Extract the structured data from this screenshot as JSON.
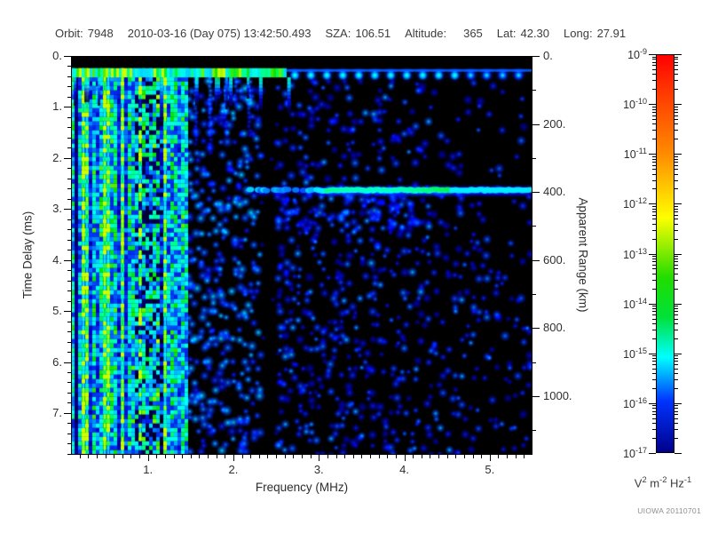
{
  "header": {
    "fields": [
      {
        "key": "orbit",
        "label": "Orbit:",
        "value": "7948"
      },
      {
        "key": "datetime",
        "label": "",
        "value": "2010-03-16 (Day 075) 13:42:50.493"
      },
      {
        "key": "sza",
        "label": "SZA:",
        "value": "106.51"
      },
      {
        "key": "altitude",
        "label": "Altitude:",
        "value": "365"
      },
      {
        "key": "lat",
        "label": "Lat:",
        "value": "42.30"
      },
      {
        "key": "long",
        "label": "Long:",
        "value": "27.91"
      }
    ]
  },
  "watermark": "UIOWA 20110701",
  "chart_data": {
    "type": "heatmap",
    "title": "Radar sounder ionogram (AIS radargram), Orbit 7948, 2010-03-16 13:42:50.493",
    "xlabel": "Frequency (MHz)",
    "ylabel_left": "Time Delay (ms)",
    "ylabel_right": "Apparent Range (km)",
    "x_range_mhz": [
      0.1,
      5.5
    ],
    "y_range_ms": [
      0.0,
      7.82
    ],
    "right_range_km": [
      0,
      1173
    ],
    "x_major_values": [
      1,
      2,
      3,
      4,
      5
    ],
    "x_major_labels": [
      "1.",
      "2.",
      "3.",
      "4.",
      "5."
    ],
    "x_minor_step_mhz": 0.1,
    "y_major_values": [
      0,
      1,
      2,
      3,
      4,
      5,
      6,
      7
    ],
    "y_major_labels": [
      "0.",
      "1.",
      "2.",
      "3.",
      "4.",
      "5.",
      "6.",
      "7."
    ],
    "y_minor_step_ms": 0.2,
    "right_major_values": [
      0,
      200,
      400,
      600,
      800,
      1000
    ],
    "right_major_labels": [
      "0.",
      "200.",
      "400.",
      "600.",
      "800.",
      "1000."
    ],
    "right_minor_step_km": 100,
    "km_per_ms": 150,
    "grid": false,
    "colorbar": {
      "scale": "log",
      "max": 1e-09,
      "min": 1e-17,
      "tick_exponents": [
        -9,
        -10,
        -11,
        -12,
        -13,
        -14,
        -15,
        -16,
        -17
      ],
      "tick_base": "10",
      "unit_parts": [
        {
          "base": "V",
          "exp": "2"
        },
        {
          "base": "m",
          "exp": "-2"
        },
        {
          "base": "Hz",
          "exp": "-1"
        }
      ],
      "gradient_stops": [
        [
          0.0,
          "#ff0000"
        ],
        [
          0.09,
          "#ff3600"
        ],
        [
          0.25,
          "#ff8c00"
        ],
        [
          0.41,
          "#ffff00"
        ],
        [
          0.56,
          "#22dd00"
        ],
        [
          0.66,
          "#00e23c"
        ],
        [
          0.76,
          "#00ffff"
        ],
        [
          0.87,
          "#0033ff"
        ],
        [
          1.0,
          "#000088"
        ]
      ]
    },
    "data_colormap_stops": [
      [
        0.0,
        "#000000"
      ],
      [
        0.1,
        "#000066"
      ],
      [
        0.25,
        "#0000cc"
      ],
      [
        0.4,
        "#0044ff"
      ],
      [
        0.55,
        "#00ccff"
      ],
      [
        0.66,
        "#00ffee"
      ],
      [
        0.78,
        "#00ff88"
      ],
      [
        0.88,
        "#00e400"
      ],
      [
        1.0,
        "#ccff00"
      ]
    ],
    "features": {
      "seed": 7948,
      "background": "#000000",
      "top_black_band_ms": [
        0.0,
        0.2
      ],
      "transmit_band_ms": [
        0.24,
        0.42
      ],
      "transmit_continuous_until_mhz": 2.62,
      "transmit_blob_start_mhz": 2.72,
      "transmit_blob_spacing_mhz": 0.187,
      "transmit_blob_cyan_after_mhz": 4.75,
      "transmit_drip_freqs_mhz": [
        1.14,
        1.55,
        1.95,
        2.3,
        2.63
      ],
      "lf_noise_band_mhz": [
        0.1,
        1.47
      ],
      "lf_bright_lines_mhz": [
        0.22,
        0.27,
        0.5,
        0.68,
        0.9,
        1.17
      ],
      "lf_semibright_lines_mhz": [
        0.35,
        0.42,
        0.58,
        0.78,
        1.02,
        1.28
      ],
      "lf_dropout_zone_mhz": [
        0.84,
        1.15
      ],
      "mid_scatter_mhz": [
        1.47,
        2.33
      ],
      "quiet_gap_mhz": [
        2.33,
        2.52
      ],
      "hf_scatter_mhz": [
        2.52,
        5.5
      ],
      "echo_trace_ms": 2.63,
      "echo_trace_range_km": 394,
      "echo_extent_mhz": [
        2.2,
        5.5
      ],
      "echo_continuous_from_mhz": 2.95,
      "echo_bright_mhz": [
        3.1,
        4.55
      ],
      "echo_diffuse_below_mhz": [
        2.5,
        4.3
      ],
      "echo_diffuse_below_ms": [
        2.75,
        3.45
      ]
    }
  }
}
